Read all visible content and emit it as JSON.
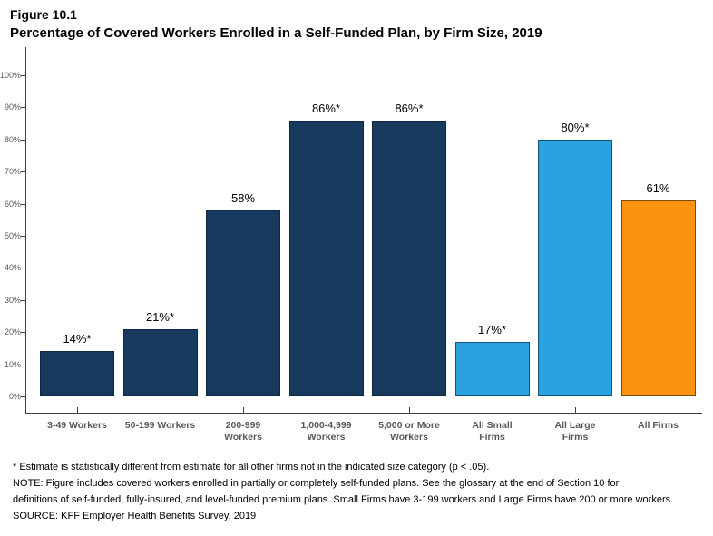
{
  "figure": {
    "label": "Figure 10.1",
    "title": "Percentage of Covered Workers Enrolled in a Self-Funded Plan, by Firm Size, 2019"
  },
  "chart_data": {
    "type": "bar",
    "title": "Figure 10.1",
    "subtitle": "Percentage of Covered Workers Enrolled in a Self-Funded Plan, by Firm Size, 2019",
    "categories": [
      "3-49 Workers",
      "50-199 Workers",
      "200-999 Workers",
      "1,000-4,999 Workers",
      "5,000 or More Workers",
      "All Small Firms",
      "All Large Firms",
      "All Firms"
    ],
    "category_lines": [
      [
        "3-49 Workers"
      ],
      [
        "50-199 Workers"
      ],
      [
        "200-999",
        "Workers"
      ],
      [
        "1,000-4,999",
        "Workers"
      ],
      [
        "5,000 or More",
        "Workers"
      ],
      [
        "All Small",
        "Firms"
      ],
      [
        "All Large",
        "Firms"
      ],
      [
        "All Firms"
      ]
    ],
    "values": [
      14,
      21,
      58,
      86,
      86,
      17,
      80,
      61
    ],
    "bar_labels": [
      "14%*",
      "21%*",
      "58%",
      "86%*",
      "86%*",
      "17%*",
      "80%*",
      "61%"
    ],
    "bar_color_keys": [
      "dark_navy",
      "dark_navy",
      "dark_navy",
      "dark_navy",
      "dark_navy",
      "light_blue",
      "light_blue",
      "orange"
    ],
    "colors": {
      "dark_navy": "#17395D",
      "light_blue": "#2BA1DF",
      "orange": "#FA9310"
    },
    "border_colors": {
      "dark_navy": "#0E2742",
      "light_blue": "#17517A",
      "orange": "#7A4A00"
    },
    "ylim": [
      0,
      100
    ],
    "ytick_labels": [
      "0%",
      "10%",
      "20%",
      "30%",
      "40%",
      "50%",
      "60%",
      "70%",
      "80%",
      "90%",
      "100%"
    ],
    "grid": false,
    "legend": "none"
  },
  "footnotes": {
    "lines": [
      "* Estimate is statistically different from estimate for all other firms not in the indicated size category (p < .05).",
      "NOTE: Figure includes covered workers enrolled in partially or completely self-funded plans. See the glossary at the end of Section 10 for",
      "definitions of self-funded, fully-insured, and level-funded premium plans. Small Firms have 3-199 workers and Large Firms have 200 or more workers.",
      "SOURCE: KFF Employer Health Benefits Survey, 2019"
    ]
  }
}
